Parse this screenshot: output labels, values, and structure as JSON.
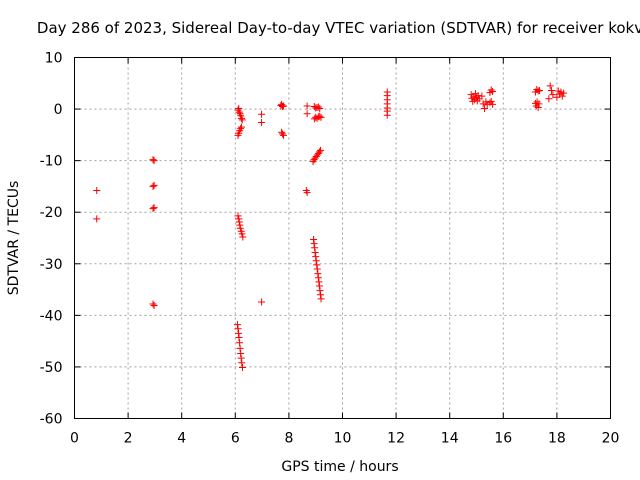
{
  "chart_data": {
    "type": "scatter",
    "title": "Day 286 of 2023, Sidereal Day-to-day VTEC variation (SDTVAR) for receiver kokv",
    "xlabel": "GPS time / hours",
    "ylabel": "SDTVAR / TECUs",
    "xlim": [
      0,
      20
    ],
    "ylim": [
      -60,
      10
    ],
    "xticks": [
      0,
      2,
      4,
      6,
      8,
      10,
      12,
      14,
      16,
      18,
      20
    ],
    "yticks": [
      10,
      0,
      -10,
      -20,
      -30,
      -40,
      -50,
      -60
    ],
    "grid": true,
    "marker": "plus",
    "color": "#ff0000",
    "series": [
      {
        "name": "SDTVAR",
        "points": [
          [
            0.83,
            -15.8
          ],
          [
            0.83,
            -21.3
          ],
          [
            2.93,
            -9.8
          ],
          [
            2.97,
            -10.0
          ],
          [
            2.93,
            -15.0
          ],
          [
            2.97,
            -14.8
          ],
          [
            2.93,
            -19.3
          ],
          [
            2.97,
            -19.1
          ],
          [
            2.93,
            -37.8
          ],
          [
            2.97,
            -38.1
          ],
          [
            6.1,
            -0.2
          ],
          [
            6.13,
            0.1
          ],
          [
            6.15,
            -0.6
          ],
          [
            6.18,
            -0.9
          ],
          [
            6.2,
            -1.3
          ],
          [
            6.23,
            -1.8
          ],
          [
            6.26,
            -2.1
          ],
          [
            6.1,
            -5.1
          ],
          [
            6.13,
            -4.7
          ],
          [
            6.16,
            -4.2
          ],
          [
            6.2,
            -3.8
          ],
          [
            6.23,
            -3.5
          ],
          [
            6.1,
            -20.7
          ],
          [
            6.13,
            -21.3
          ],
          [
            6.15,
            -21.9
          ],
          [
            6.17,
            -22.5
          ],
          [
            6.19,
            -23.1
          ],
          [
            6.22,
            -23.7
          ],
          [
            6.25,
            -24.2
          ],
          [
            6.28,
            -24.8
          ],
          [
            6.08,
            -41.8
          ],
          [
            6.1,
            -42.6
          ],
          [
            6.12,
            -43.5
          ],
          [
            6.14,
            -44.3
          ],
          [
            6.16,
            -45.3
          ],
          [
            6.18,
            -46.4
          ],
          [
            6.2,
            -47.4
          ],
          [
            6.22,
            -48.3
          ],
          [
            6.24,
            -49.2
          ],
          [
            6.27,
            -50.1
          ],
          [
            6.98,
            -1.0
          ],
          [
            6.98,
            -2.6
          ],
          [
            6.98,
            -37.4
          ],
          [
            7.7,
            0.7
          ],
          [
            7.73,
            0.9
          ],
          [
            7.76,
            0.5
          ],
          [
            7.8,
            0.6
          ],
          [
            7.73,
            -4.5
          ],
          [
            7.76,
            -4.8
          ],
          [
            7.8,
            -5.1
          ],
          [
            8.68,
            0.6
          ],
          [
            8.68,
            -0.9
          ],
          [
            8.65,
            -15.8
          ],
          [
            8.68,
            -16.2
          ],
          [
            8.95,
            0.5
          ],
          [
            9.0,
            0.2
          ],
          [
            9.05,
            0.3
          ],
          [
            9.1,
            0.4
          ],
          [
            9.15,
            0.1
          ],
          [
            8.95,
            -1.9
          ],
          [
            9.0,
            -1.6
          ],
          [
            9.05,
            -1.8
          ],
          [
            9.1,
            -1.5
          ],
          [
            9.15,
            -1.4
          ],
          [
            9.2,
            -1.6
          ],
          [
            8.9,
            -10.2
          ],
          [
            8.94,
            -9.8
          ],
          [
            8.98,
            -9.5
          ],
          [
            9.02,
            -9.2
          ],
          [
            9.06,
            -8.9
          ],
          [
            9.1,
            -8.6
          ],
          [
            9.14,
            -8.3
          ],
          [
            9.18,
            -8.0
          ],
          [
            8.92,
            -25.3
          ],
          [
            8.94,
            -26.1
          ],
          [
            8.96,
            -26.9
          ],
          [
            8.98,
            -27.8
          ],
          [
            9.0,
            -28.6
          ],
          [
            9.02,
            -29.4
          ],
          [
            9.04,
            -30.2
          ],
          [
            9.06,
            -31.0
          ],
          [
            9.08,
            -31.9
          ],
          [
            9.1,
            -32.7
          ],
          [
            9.12,
            -33.5
          ],
          [
            9.14,
            -34.3
          ],
          [
            9.16,
            -35.2
          ],
          [
            9.18,
            -36.0
          ],
          [
            9.2,
            -36.8
          ],
          [
            11.67,
            3.3
          ],
          [
            11.67,
            2.6
          ],
          [
            11.67,
            1.8
          ],
          [
            11.67,
            1.0
          ],
          [
            11.67,
            0.2
          ],
          [
            11.67,
            -0.4
          ],
          [
            11.67,
            -1.2
          ],
          [
            14.8,
            2.8
          ],
          [
            14.83,
            2.1
          ],
          [
            14.86,
            1.5
          ],
          [
            14.9,
            2.4
          ],
          [
            14.93,
            1.8
          ],
          [
            14.96,
            3.0
          ],
          [
            15.0,
            2.2
          ],
          [
            15.03,
            1.6
          ],
          [
            15.06,
            2.6
          ],
          [
            15.1,
            2.0
          ],
          [
            15.2,
            2.5
          ],
          [
            15.25,
            1.0
          ],
          [
            15.3,
            0.1
          ],
          [
            15.35,
            1.4
          ],
          [
            15.4,
            0.9
          ],
          [
            15.5,
            3.2
          ],
          [
            15.55,
            3.7
          ],
          [
            15.6,
            3.4
          ],
          [
            15.5,
            1.2
          ],
          [
            15.55,
            1.5
          ],
          [
            15.6,
            0.9
          ],
          [
            17.2,
            3.3
          ],
          [
            17.25,
            3.8
          ],
          [
            17.3,
            3.5
          ],
          [
            17.35,
            3.6
          ],
          [
            17.2,
            1.1
          ],
          [
            17.23,
            0.6
          ],
          [
            17.26,
            1.4
          ],
          [
            17.3,
            0.3
          ],
          [
            17.33,
            1.0
          ],
          [
            17.7,
            2.0
          ],
          [
            17.75,
            4.5
          ],
          [
            17.8,
            3.6
          ],
          [
            17.85,
            2.8
          ],
          [
            18.0,
            2.3
          ],
          [
            18.05,
            3.5
          ],
          [
            18.1,
            2.9
          ],
          [
            18.15,
            3.3
          ],
          [
            18.2,
            2.5
          ],
          [
            18.25,
            3.1
          ]
        ]
      }
    ]
  }
}
